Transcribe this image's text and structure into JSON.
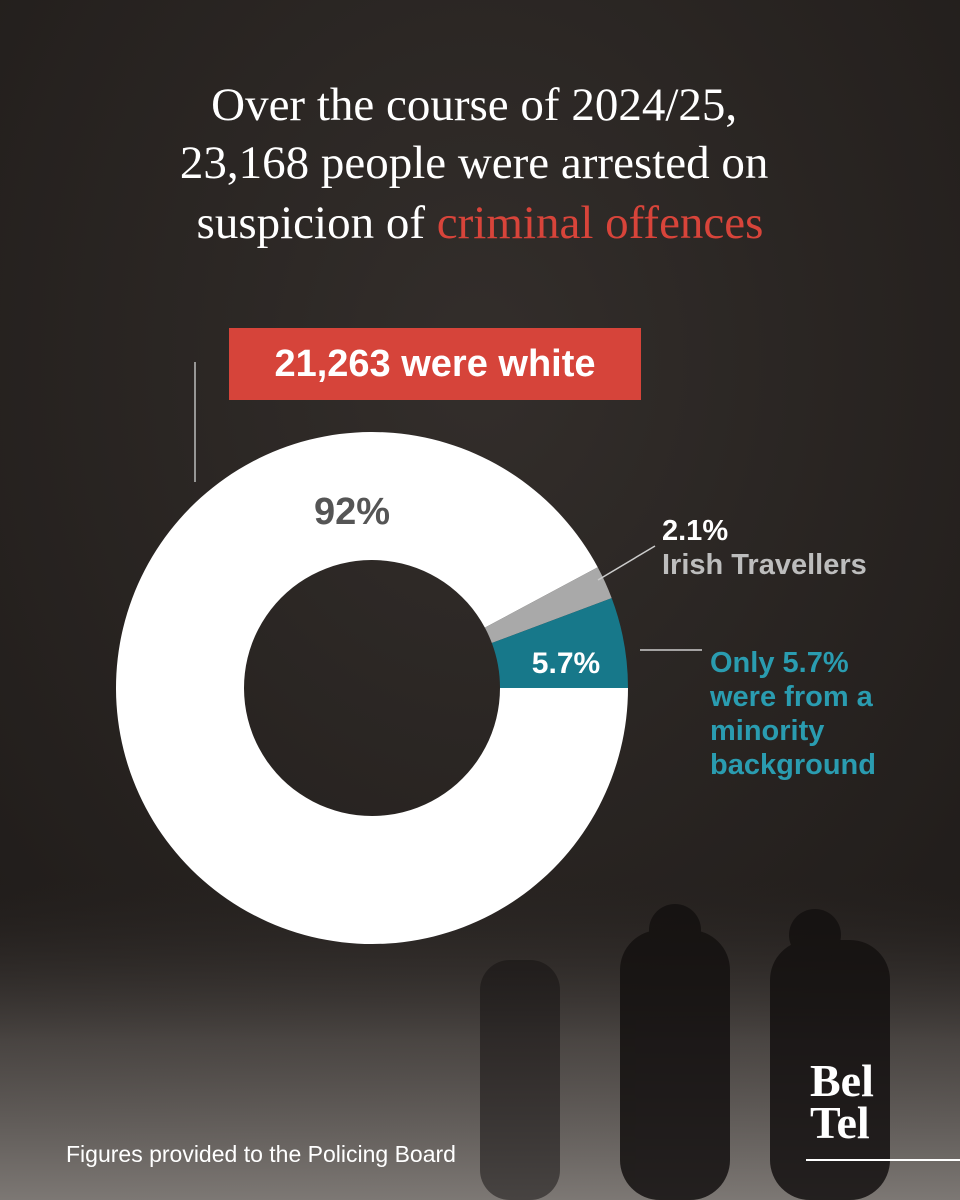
{
  "chart_data": {
    "type": "donut",
    "title_lines": [
      "Over the course of 2024/25,",
      "23,168 people were arrested on",
      "suspicion of"
    ],
    "title_highlight": "criminal offences",
    "callout": "21,263 were white",
    "categories": [
      null,
      "Irish Travellers",
      null
    ],
    "values": [
      92,
      2.1,
      5.7
    ],
    "value_labels": [
      "92%",
      "2.1%",
      "5.7%"
    ],
    "colors": [
      "#ffffff",
      "#a9a9a9",
      "#17788a"
    ],
    "annotation_lines": [
      "Only 5.7%",
      "were from a",
      "minority",
      "background"
    ],
    "source": "Figures provided to the Policing Board",
    "logo_lines": [
      "Bel",
      "Tel"
    ]
  }
}
